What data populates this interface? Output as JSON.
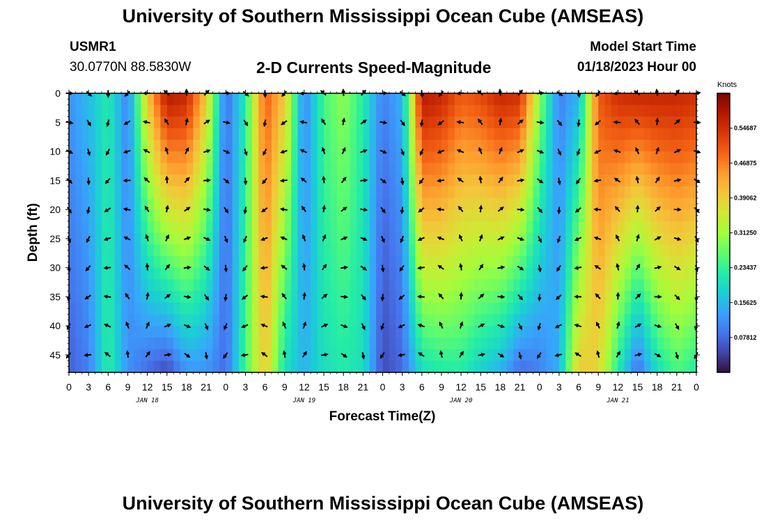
{
  "header": {
    "title": "University of Southern Mississippi Ocean Cube (AMSEAS)",
    "station_id": "USMR1",
    "coordinates": "30.0770N  88.5830W",
    "model_label": "Model Start Time",
    "model_start": "01/18/2023 Hour 00"
  },
  "footer": {
    "title": "University of Southern Mississippi Ocean Cube (AMSEAS)"
  },
  "chart_data": {
    "type": "heatmap",
    "title": "2-D Currents Speed-Magnitude",
    "xlabel": "Forecast Time(Z)",
    "ylabel": "Depth (ft)",
    "x_range_hours": [
      0,
      96
    ],
    "x_ticks": [
      "0",
      "3",
      "6",
      "9",
      "12",
      "15",
      "18",
      "21",
      "0",
      "3",
      "6",
      "9",
      "12",
      "15",
      "18",
      "21",
      "0",
      "3",
      "6",
      "9",
      "12",
      "15",
      "18",
      "21",
      "0",
      "3",
      "6",
      "9",
      "12",
      "15",
      "18",
      "21",
      "0"
    ],
    "day_labels": [
      "JAN 18",
      "JAN 19",
      "JAN 20",
      "JAN 21"
    ],
    "ylim": [
      0,
      48
    ],
    "y_ticks": [
      "0",
      "5",
      "10",
      "15",
      "20",
      "25",
      "30",
      "35",
      "40",
      "45"
    ],
    "colorbar": {
      "unit": "Knots",
      "range": [
        0.0,
        0.625
      ],
      "ticks": [
        "0.54687",
        "0.46875",
        "0.39062",
        "0.31250",
        "0.23437",
        "0.15625",
        "0.07812"
      ],
      "colors": [
        "#30123b",
        "#4145ab",
        "#4675ed",
        "#39a2fc",
        "#1bcfd4",
        "#24eca6",
        "#61fc6c",
        "#a4fc3b",
        "#d1e834",
        "#f3c63a",
        "#fe9b2d",
        "#f36315",
        "#d93806",
        "#b11901",
        "#7a0402"
      ]
    },
    "speed_profile_hours": [
      0,
      3,
      6,
      9,
      12,
      15,
      18,
      21,
      24,
      27,
      30,
      33,
      36,
      39,
      42,
      45,
      48,
      51,
      54,
      57,
      60,
      63,
      66,
      69,
      72,
      75,
      78,
      81,
      84,
      87,
      90,
      93,
      96
    ],
    "speed_profile_surface": [
      0.12,
      0.16,
      0.22,
      0.1,
      0.4,
      0.58,
      0.56,
      0.4,
      0.08,
      0.22,
      0.5,
      0.4,
      0.1,
      0.25,
      0.3,
      0.22,
      0.1,
      0.15,
      0.58,
      0.56,
      0.5,
      0.52,
      0.56,
      0.55,
      0.3,
      0.1,
      0.15,
      0.5,
      0.55,
      0.56,
      0.56,
      0.56,
      0.55
    ],
    "speed_profile_bottom": [
      0.07,
      0.1,
      0.23,
      0.12,
      0.08,
      0.05,
      0.12,
      0.12,
      0.08,
      0.25,
      0.4,
      0.2,
      0.15,
      0.2,
      0.22,
      0.2,
      0.05,
      0.08,
      0.2,
      0.22,
      0.22,
      0.18,
      0.15,
      0.08,
      0.1,
      0.15,
      0.4,
      0.38,
      0.22,
      0.08,
      0.2,
      0.25,
      0.22
    ]
  }
}
